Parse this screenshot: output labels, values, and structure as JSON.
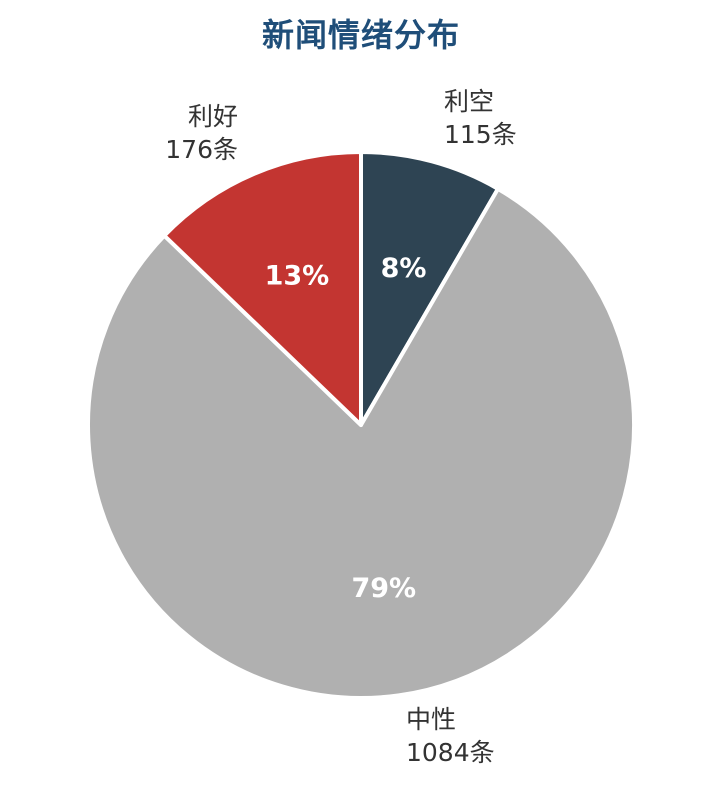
{
  "chart_data": {
    "type": "pie",
    "title": "新闻情绪分布",
    "colors": {
      "利空": "#2e4453",
      "中性": "#b0b0b0",
      "利好": "#c33531"
    },
    "slices": [
      {
        "label": "利空",
        "count_label": "115条",
        "value": 115,
        "percent_label": "8%",
        "color": "#2e4453"
      },
      {
        "label": "中性",
        "count_label": "1084条",
        "value": 1084,
        "percent_label": "79%",
        "color": "#b0b0b0"
      },
      {
        "label": "利好",
        "count_label": "176条",
        "value": 176,
        "percent_label": "13%",
        "color": "#c33531"
      }
    ]
  }
}
